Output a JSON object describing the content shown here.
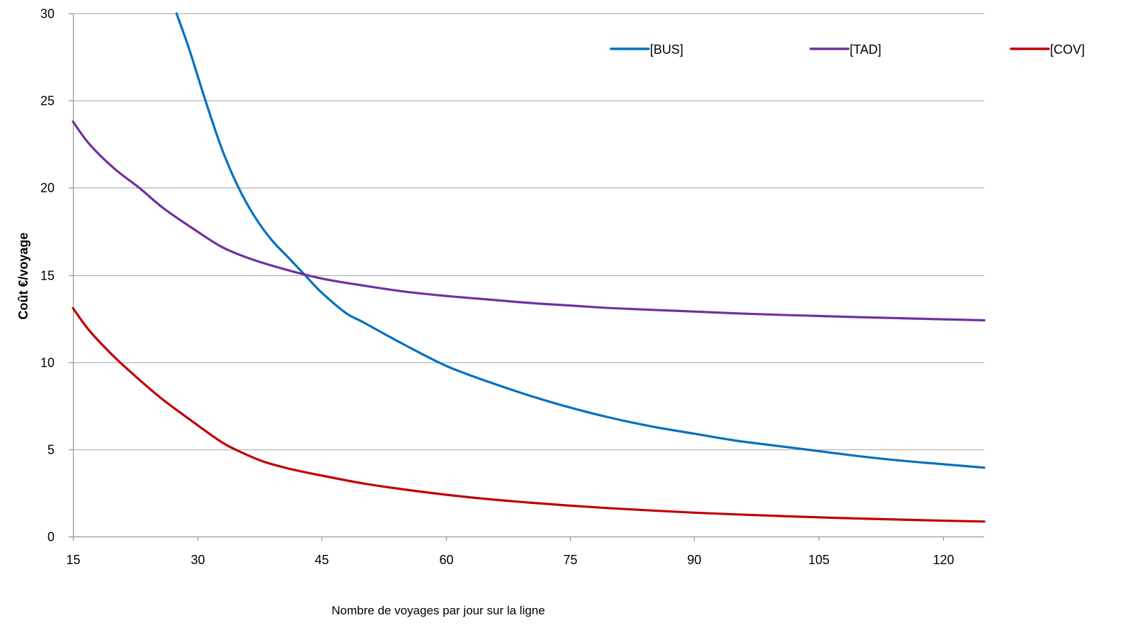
{
  "chart_data": {
    "type": "line",
    "title": "",
    "xlabel": "Nombre de voyages par jour sur la ligne",
    "ylabel": "Coût €/voyage",
    "xlim": [
      15,
      125
    ],
    "ylim": [
      0,
      30
    ],
    "xticks": [
      15,
      30,
      45,
      60,
      75,
      90,
      105,
      120
    ],
    "yticks": [
      0,
      5,
      10,
      15,
      20,
      25,
      30
    ],
    "grid": "horizontal",
    "legend_position": "top-right",
    "series": [
      {
        "name": "[BUS]",
        "color": "#0070C0",
        "x": [
          27.5,
          29,
          31,
          33,
          35,
          37,
          39,
          41,
          43,
          45,
          48,
          50,
          55,
          60,
          65,
          70,
          75,
          80,
          85,
          90,
          95,
          100,
          105,
          110,
          115,
          120,
          125
        ],
        "y": [
          30,
          28,
          25,
          22.2,
          20,
          18.3,
          17,
          16,
          15,
          14,
          12.8,
          12.3,
          11,
          9.8,
          8.9,
          8.1,
          7.4,
          6.8,
          6.3,
          5.9,
          5.5,
          5.2,
          4.9,
          4.6,
          4.35,
          4.15,
          3.95
        ]
      },
      {
        "name": "[TAD]",
        "color": "#7030A0",
        "x": [
          15,
          17,
          20,
          23,
          26,
          30,
          33,
          36,
          40,
          45,
          50,
          55,
          60,
          65,
          70,
          75,
          80,
          85,
          90,
          95,
          100,
          105,
          110,
          115,
          120,
          125
        ],
        "y": [
          23.8,
          22.5,
          21.1,
          20,
          18.8,
          17.5,
          16.6,
          16,
          15.4,
          14.8,
          14.4,
          14.05,
          13.8,
          13.6,
          13.4,
          13.25,
          13.1,
          13,
          12.9,
          12.8,
          12.72,
          12.65,
          12.58,
          12.52,
          12.46,
          12.4
        ]
      },
      {
        "name": "[COV]",
        "color": "#C00000",
        "x": [
          15,
          17,
          20,
          23,
          26,
          30,
          33,
          35,
          38,
          41,
          45,
          50,
          55,
          60,
          65,
          70,
          75,
          80,
          85,
          90,
          95,
          100,
          105,
          110,
          115,
          120,
          125
        ],
        "y": [
          13.1,
          11.8,
          10.3,
          9,
          7.8,
          6.4,
          5.4,
          4.9,
          4.3,
          3.9,
          3.5,
          3.05,
          2.7,
          2.4,
          2.15,
          1.95,
          1.77,
          1.62,
          1.49,
          1.37,
          1.27,
          1.18,
          1.1,
          1.03,
          0.97,
          0.91,
          0.86
        ]
      }
    ]
  }
}
